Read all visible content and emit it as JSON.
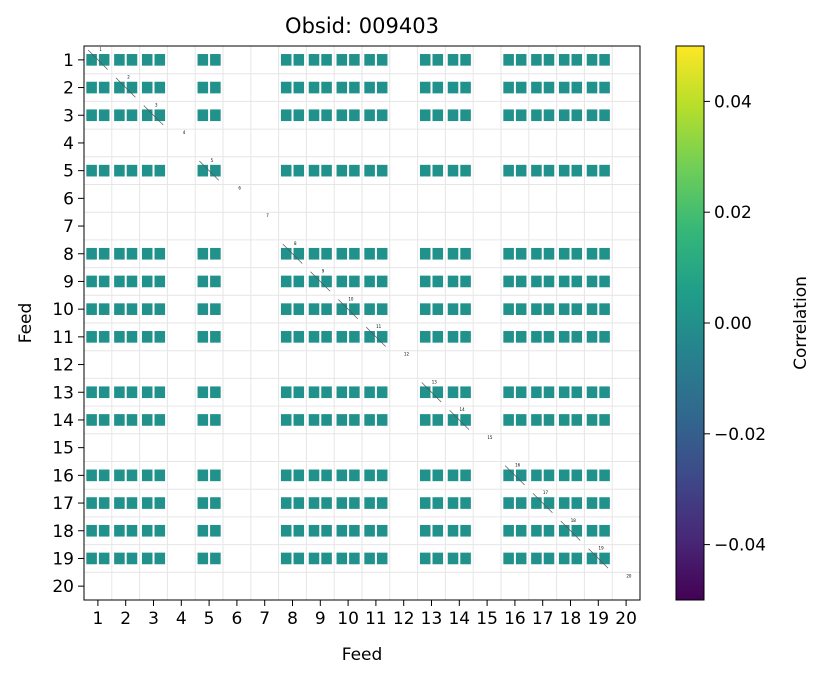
{
  "chart_data": {
    "type": "heatmap",
    "title": "Obsid: 009403",
    "xlabel": "Feed",
    "ylabel": "Feed",
    "x_ticks": [
      "1",
      "2",
      "3",
      "4",
      "5",
      "6",
      "7",
      "8",
      "9",
      "10",
      "11",
      "12",
      "13",
      "14",
      "15",
      "16",
      "17",
      "18",
      "19",
      "20"
    ],
    "y_ticks": [
      "1",
      "2",
      "3",
      "4",
      "5",
      "6",
      "7",
      "8",
      "9",
      "10",
      "11",
      "12",
      "13",
      "14",
      "15",
      "16",
      "17",
      "18",
      "19",
      "20"
    ],
    "feeds": [
      1,
      2,
      3,
      4,
      5,
      6,
      7,
      8,
      9,
      10,
      11,
      12,
      13,
      14,
      15,
      16,
      17,
      18,
      19,
      20
    ],
    "active_feeds": [
      1,
      2,
      3,
      5,
      8,
      9,
      10,
      11,
      13,
      14,
      16,
      17,
      18,
      19
    ],
    "inactive_feeds": [
      4,
      6,
      7,
      12,
      15,
      20
    ],
    "cell_value": 0.0,
    "grid": true,
    "colorbar": {
      "label": "Correlation",
      "vmin": -0.05,
      "vmax": 0.05,
      "ticks": [
        0.04,
        0.02,
        0.0,
        -0.02,
        -0.04
      ],
      "tick_labels": [
        "0.04",
        "0.02",
        "0.00",
        "−0.02",
        "−0.04"
      ],
      "colormap": "viridis"
    },
    "colors": {
      "zero": "#21918c",
      "grid": "#e6e6e6",
      "viridis": [
        "#440154",
        "#482878",
        "#3e4989",
        "#31688e",
        "#26828e",
        "#1f9e89",
        "#35b779",
        "#6ece58",
        "#b5de2b",
        "#fde725"
      ]
    }
  }
}
